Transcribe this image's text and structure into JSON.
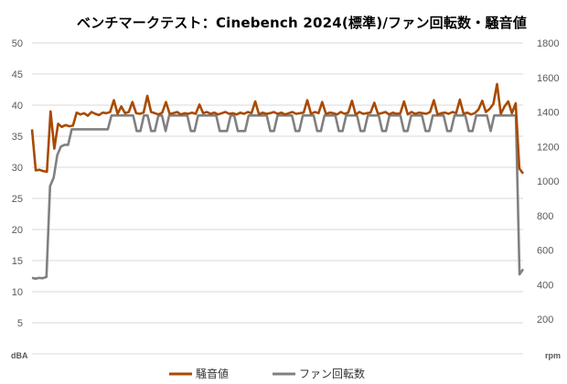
{
  "chart_data": {
    "type": "line",
    "title": "ベンチマークテスト：Cinebench 2024(標準)/ファン回転数・騒音値",
    "y_left": {
      "label": "dBA",
      "ticks": [
        5,
        10,
        15,
        20,
        25,
        30,
        35,
        40,
        45,
        50
      ],
      "range": [
        0,
        50
      ]
    },
    "y_right": {
      "label": "rpm",
      "ticks": [
        200,
        400,
        600,
        800,
        1000,
        1200,
        1400,
        1600,
        1800
      ],
      "range": [
        0,
        1800
      ]
    },
    "grid": true,
    "legend_position": "bottom",
    "series": [
      {
        "name": "騒音値",
        "axis": "left",
        "color": "#a84a00",
        "values": [
          36.1,
          29.5,
          29.6,
          29.4,
          29.3,
          39,
          33,
          37,
          36.5,
          36.8,
          36.6,
          36.7,
          38.8,
          38.5,
          38.7,
          38.3,
          38.9,
          38.6,
          38.4,
          38.8,
          38.7,
          38.9,
          40.8,
          38.6,
          39.8,
          38.7,
          38.9,
          40.5,
          38.7,
          38.6,
          38.8,
          41.5,
          38.9,
          38.7,
          38.5,
          38.8,
          40.5,
          38.6,
          38.7,
          38.9,
          38.5,
          38.7,
          38.6,
          38.8,
          38.6,
          40.1,
          38.7,
          38.9,
          38.6,
          38.8,
          38.5,
          38.7,
          38.9,
          38.6,
          38.7,
          38.5,
          38.8,
          38.6,
          38.9,
          38.7,
          40.6,
          38.5,
          38.8,
          38.6,
          38.7,
          38.9,
          38.6,
          38.8,
          38.5,
          38.7,
          38.9,
          38.6,
          38.7,
          38.8,
          40.8,
          38.6,
          38.9,
          38.7,
          40.5,
          38.6,
          38.8,
          38.7,
          38.5,
          38.9,
          38.6,
          38.8,
          40.7,
          38.5,
          38.9,
          38.6,
          38.7,
          38.8,
          40.4,
          38.6,
          38.7,
          38.9,
          38.5,
          38.8,
          38.6,
          38.7,
          40.6,
          38.5,
          38.9,
          38.6,
          38.8,
          38.7,
          38.6,
          38.9,
          40.8,
          38.5,
          38.7,
          38.8,
          38.6,
          38.9,
          38.7,
          40.9,
          38.6,
          38.8,
          38.5,
          38.7,
          39.3,
          40.7,
          38.9,
          39.4,
          40.2,
          43.4,
          38.6,
          39.8,
          40.6,
          38.7,
          40.3,
          29.8,
          29.0
        ]
      },
      {
        "name": "ファン回転数",
        "axis": "right",
        "color": "#808080",
        "values": [
          440,
          435,
          440,
          438,
          445,
          970,
          1020,
          1150,
          1200,
          1210,
          1210,
          1300,
          1300,
          1300,
          1300,
          1300,
          1300,
          1300,
          1300,
          1300,
          1300,
          1300,
          1380,
          1380,
          1380,
          1380,
          1380,
          1380,
          1380,
          1290,
          1290,
          1380,
          1380,
          1290,
          1290,
          1380,
          1380,
          1290,
          1380,
          1380,
          1380,
          1380,
          1380,
          1380,
          1290,
          1290,
          1380,
          1380,
          1380,
          1380,
          1380,
          1380,
          1290,
          1290,
          1290,
          1380,
          1380,
          1290,
          1290,
          1290,
          1380,
          1380,
          1380,
          1380,
          1380,
          1380,
          1290,
          1290,
          1380,
          1380,
          1380,
          1380,
          1380,
          1290,
          1290,
          1380,
          1380,
          1380,
          1380,
          1290,
          1290,
          1380,
          1380,
          1380,
          1380,
          1290,
          1290,
          1380,
          1380,
          1380,
          1380,
          1290,
          1290,
          1380,
          1380,
          1380,
          1380,
          1290,
          1290,
          1380,
          1380,
          1380,
          1380,
          1290,
          1290,
          1380,
          1380,
          1380,
          1380,
          1290,
          1290,
          1380,
          1380,
          1380,
          1380,
          1290,
          1290,
          1380,
          1380,
          1380,
          1380,
          1290,
          1290,
          1380,
          1380,
          1380,
          1380,
          1290,
          1380,
          1380,
          1380,
          1380,
          1380,
          1380,
          1380,
          460,
          490
        ]
      }
    ]
  }
}
